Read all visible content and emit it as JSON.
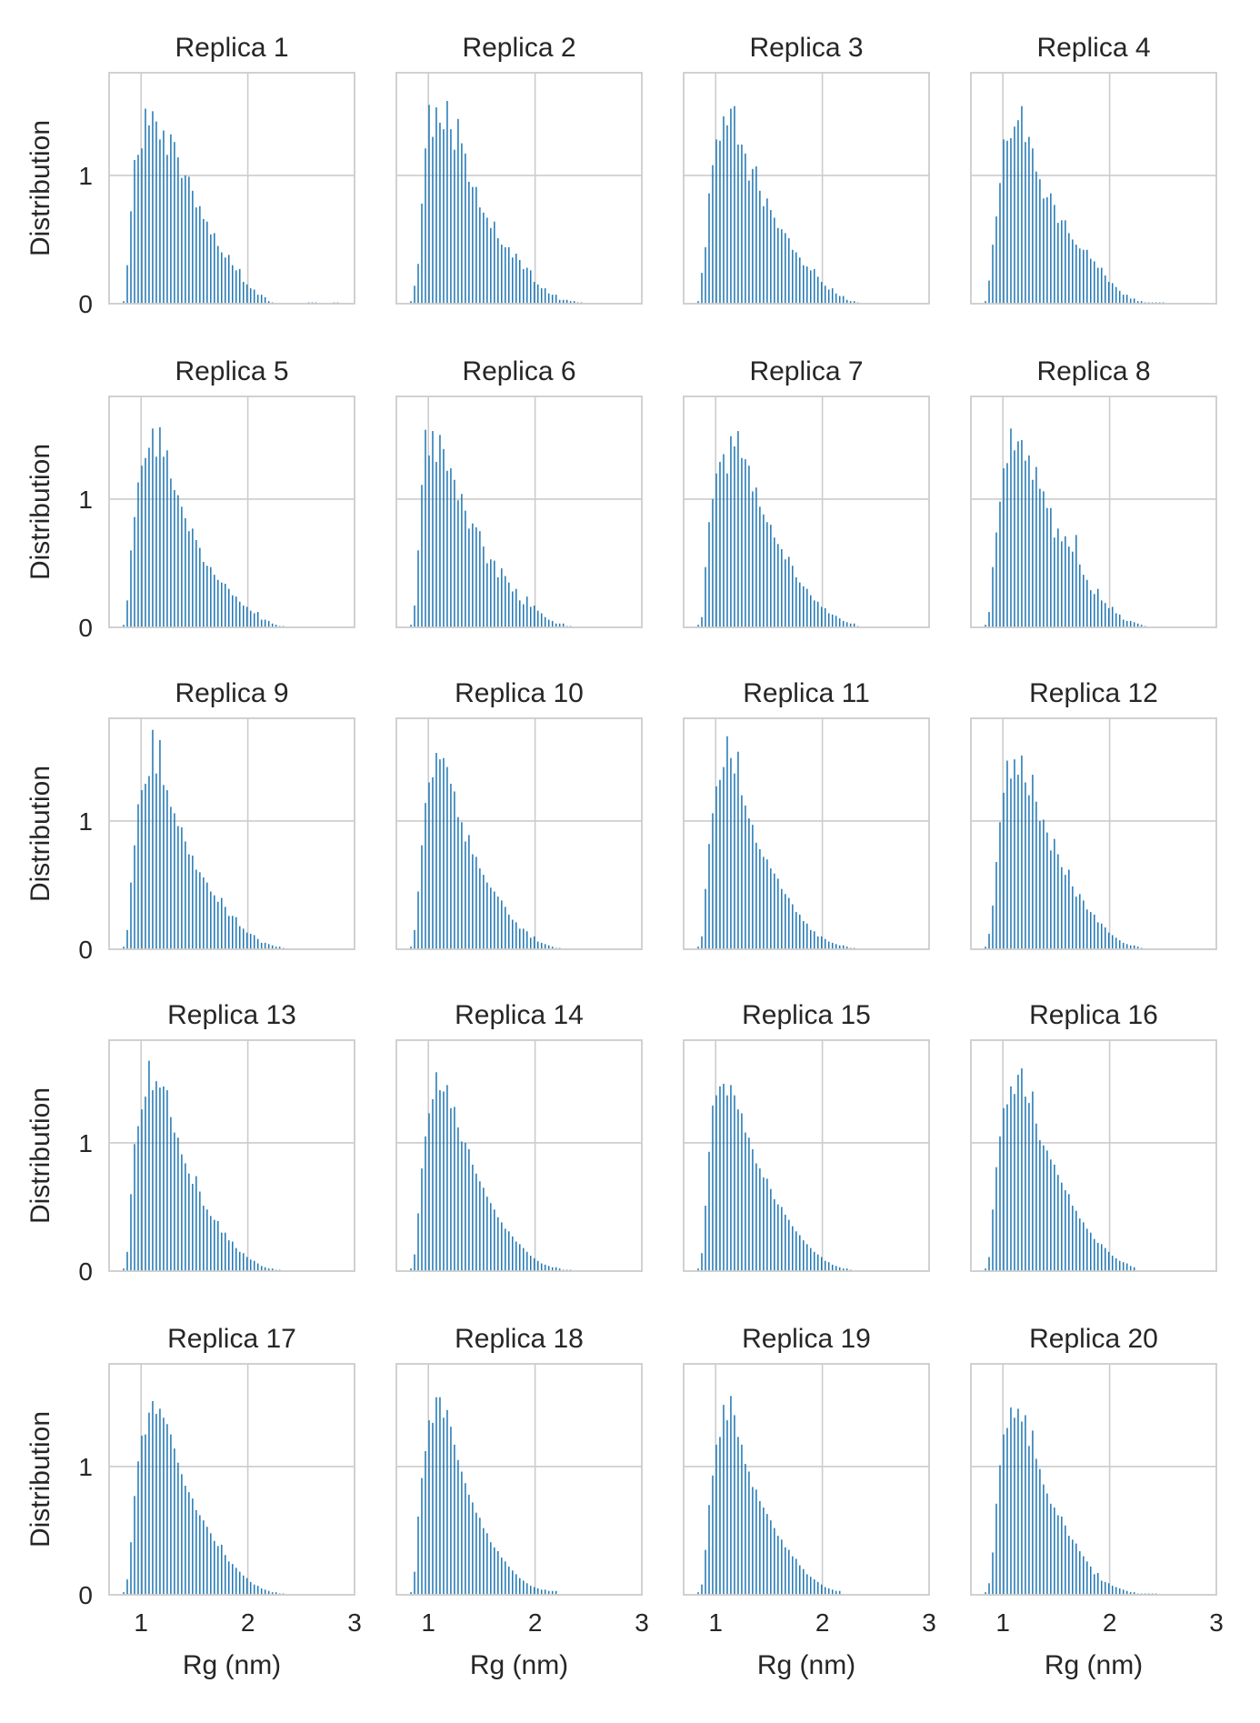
{
  "figure": {
    "xlabel": "Rg (nm)",
    "ylabel": "Distribution",
    "xticks": [
      "1",
      "2",
      "3"
    ],
    "yticks": [
      "0",
      "1"
    ],
    "bar_color": "#1f77b4",
    "grid_color": "#cccccc",
    "axis_color": "#cccccc"
  },
  "chart_data": {
    "type": "bar",
    "layout": "5 rows x 4 columns of histograms, shared x and y axes",
    "xlim": [
      0.7,
      3.0
    ],
    "ylim": [
      0,
      1.8
    ],
    "grid": true,
    "bin_width_nm": 0.034,
    "bin_start_nm": 0.83,
    "panels": [
      {
        "title": "Replica 1",
        "values": [
          0.02,
          0.3,
          0.72,
          1.12,
          1.16,
          1.21,
          1.52,
          1.39,
          1.5,
          1.42,
          1.28,
          1.35,
          1.16,
          1.32,
          1.26,
          1.14,
          0.98,
          1.0,
          0.99,
          0.88,
          0.75,
          0.76,
          0.66,
          0.64,
          0.54,
          0.55,
          0.45,
          0.4,
          0.36,
          0.38,
          0.3,
          0.26,
          0.27,
          0.17,
          0.15,
          0.12,
          0.11,
          0.07,
          0.07,
          0.05,
          0.02,
          0.01,
          0.0,
          0.0,
          0.0,
          0.0,
          0.0,
          0.0,
          0.0,
          0.0,
          0.0,
          0.01,
          0.01,
          0.01,
          0.0,
          0.0,
          0.0,
          0.0,
          0.01,
          0.01
        ]
      },
      {
        "title": "Replica 2",
        "values": [
          0.02,
          0.14,
          0.31,
          0.78,
          1.21,
          1.55,
          1.3,
          1.53,
          1.41,
          1.36,
          1.58,
          1.36,
          1.2,
          1.44,
          1.25,
          1.17,
          0.95,
          0.91,
          0.91,
          0.75,
          0.71,
          0.67,
          0.59,
          0.64,
          0.51,
          0.46,
          0.44,
          0.44,
          0.36,
          0.39,
          0.34,
          0.27,
          0.28,
          0.26,
          0.17,
          0.15,
          0.12,
          0.12,
          0.08,
          0.07,
          0.07,
          0.03,
          0.03,
          0.03,
          0.02,
          0.02,
          0.01,
          0.01
        ]
      },
      {
        "title": "Replica 3",
        "values": [
          0.02,
          0.24,
          0.44,
          0.86,
          1.08,
          1.28,
          1.27,
          1.46,
          1.39,
          1.52,
          1.54,
          1.24,
          1.24,
          1.17,
          0.96,
          1.05,
          1.07,
          0.88,
          0.76,
          0.82,
          0.73,
          0.67,
          0.59,
          0.58,
          0.55,
          0.51,
          0.42,
          0.4,
          0.36,
          0.3,
          0.29,
          0.26,
          0.27,
          0.21,
          0.17,
          0.14,
          0.11,
          0.12,
          0.08,
          0.06,
          0.06,
          0.03,
          0.02,
          0.02,
          0.01
        ]
      },
      {
        "title": "Replica 4",
        "values": [
          0.02,
          0.18,
          0.46,
          0.68,
          0.94,
          1.28,
          1.27,
          1.29,
          1.38,
          1.43,
          1.54,
          1.26,
          1.3,
          1.21,
          1.03,
          0.97,
          0.82,
          0.83,
          0.86,
          0.77,
          0.63,
          0.65,
          0.65,
          0.55,
          0.5,
          0.46,
          0.43,
          0.42,
          0.42,
          0.35,
          0.33,
          0.28,
          0.28,
          0.22,
          0.17,
          0.16,
          0.13,
          0.1,
          0.07,
          0.07,
          0.04,
          0.04,
          0.02,
          0.02,
          0.01,
          0.01,
          0.01,
          0.01,
          0.01,
          0.01
        ]
      },
      {
        "title": "Replica 5",
        "values": [
          0.02,
          0.21,
          0.6,
          0.86,
          1.13,
          1.26,
          1.32,
          1.4,
          1.55,
          1.33,
          1.56,
          1.33,
          1.38,
          1.16,
          1.07,
          1.03,
          0.94,
          0.85,
          0.75,
          0.77,
          0.68,
          0.62,
          0.51,
          0.48,
          0.47,
          0.41,
          0.37,
          0.35,
          0.34,
          0.3,
          0.25,
          0.24,
          0.2,
          0.17,
          0.16,
          0.13,
          0.11,
          0.12,
          0.06,
          0.06,
          0.05,
          0.03,
          0.02,
          0.01,
          0.01
        ]
      },
      {
        "title": "Replica 6",
        "values": [
          0.02,
          0.17,
          0.6,
          1.11,
          1.54,
          1.34,
          1.53,
          1.29,
          1.5,
          1.39,
          1.22,
          1.24,
          1.15,
          0.99,
          1.04,
          0.91,
          0.77,
          0.81,
          0.78,
          0.75,
          0.63,
          0.5,
          0.53,
          0.52,
          0.39,
          0.46,
          0.4,
          0.35,
          0.28,
          0.3,
          0.21,
          0.18,
          0.24,
          0.16,
          0.17,
          0.13,
          0.11,
          0.08,
          0.06,
          0.05,
          0.03,
          0.03,
          0.03,
          0.01,
          0.01
        ]
      },
      {
        "title": "Replica 7",
        "values": [
          0.02,
          0.08,
          0.47,
          0.82,
          1.0,
          1.2,
          1.29,
          1.35,
          1.2,
          1.49,
          1.41,
          1.53,
          1.32,
          1.31,
          1.26,
          1.06,
          1.09,
          0.94,
          0.88,
          0.82,
          0.8,
          0.7,
          0.65,
          0.61,
          0.53,
          0.55,
          0.48,
          0.39,
          0.35,
          0.32,
          0.3,
          0.25,
          0.21,
          0.2,
          0.16,
          0.15,
          0.11,
          0.1,
          0.09,
          0.07,
          0.05,
          0.04,
          0.03,
          0.03,
          0.01
        ]
      },
      {
        "title": "Replica 8",
        "values": [
          0.02,
          0.12,
          0.47,
          0.74,
          0.98,
          1.24,
          1.28,
          1.55,
          1.38,
          1.45,
          1.46,
          1.3,
          1.34,
          1.15,
          1.25,
          1.08,
          1.06,
          0.93,
          0.93,
          0.7,
          0.77,
          0.67,
          0.71,
          0.63,
          0.59,
          0.72,
          0.49,
          0.41,
          0.37,
          0.29,
          0.26,
          0.3,
          0.21,
          0.19,
          0.15,
          0.16,
          0.11,
          0.1,
          0.06,
          0.05,
          0.05,
          0.04,
          0.03,
          0.02,
          0.01
        ]
      },
      {
        "title": "Replica 9",
        "values": [
          0.02,
          0.15,
          0.52,
          0.81,
          1.13,
          1.24,
          1.29,
          1.35,
          1.71,
          1.37,
          1.63,
          1.28,
          1.24,
          1.11,
          1.06,
          0.96,
          0.95,
          0.84,
          0.74,
          0.73,
          0.62,
          0.6,
          0.56,
          0.52,
          0.45,
          0.42,
          0.37,
          0.4,
          0.33,
          0.26,
          0.26,
          0.25,
          0.18,
          0.16,
          0.13,
          0.12,
          0.11,
          0.08,
          0.05,
          0.05,
          0.04,
          0.03,
          0.02,
          0.02,
          0.01
        ]
      },
      {
        "title": "Replica 10",
        "values": [
          0.02,
          0.15,
          0.45,
          0.81,
          1.14,
          1.3,
          1.34,
          1.53,
          1.48,
          1.49,
          1.42,
          1.29,
          1.23,
          1.03,
          0.99,
          0.84,
          0.89,
          0.74,
          0.72,
          0.63,
          0.58,
          0.52,
          0.48,
          0.45,
          0.41,
          0.38,
          0.33,
          0.27,
          0.23,
          0.21,
          0.16,
          0.16,
          0.14,
          0.09,
          0.1,
          0.06,
          0.05,
          0.04,
          0.03,
          0.02,
          0.01,
          0.01
        ]
      },
      {
        "title": "Replica 11",
        "values": [
          0.02,
          0.1,
          0.47,
          0.82,
          1.06,
          1.27,
          1.32,
          1.42,
          1.66,
          1.49,
          1.37,
          1.54,
          1.2,
          1.12,
          1.02,
          0.97,
          0.83,
          0.78,
          0.72,
          0.7,
          0.63,
          0.59,
          0.55,
          0.47,
          0.43,
          0.4,
          0.35,
          0.29,
          0.27,
          0.22,
          0.2,
          0.15,
          0.14,
          0.1,
          0.1,
          0.08,
          0.06,
          0.05,
          0.04,
          0.03,
          0.03,
          0.02,
          0.01,
          0.01
        ]
      },
      {
        "title": "Replica 12",
        "values": [
          0.02,
          0.12,
          0.34,
          0.68,
          0.99,
          1.22,
          1.47,
          1.33,
          1.48,
          1.36,
          1.51,
          1.3,
          1.2,
          1.36,
          1.15,
          1.0,
          1.01,
          0.91,
          0.77,
          0.86,
          0.74,
          0.64,
          0.58,
          0.62,
          0.49,
          0.41,
          0.43,
          0.38,
          0.31,
          0.29,
          0.27,
          0.21,
          0.2,
          0.17,
          0.13,
          0.11,
          0.09,
          0.07,
          0.05,
          0.04,
          0.03,
          0.03,
          0.02,
          0.01
        ]
      },
      {
        "title": "Replica 13",
        "values": [
          0.02,
          0.15,
          0.6,
          0.99,
          1.13,
          1.26,
          1.36,
          1.64,
          1.41,
          1.48,
          1.43,
          1.44,
          1.41,
          1.2,
          1.08,
          1.04,
          0.91,
          0.84,
          0.76,
          0.68,
          0.74,
          0.62,
          0.51,
          0.48,
          0.43,
          0.4,
          0.39,
          0.3,
          0.3,
          0.24,
          0.23,
          0.18,
          0.15,
          0.14,
          0.11,
          0.09,
          0.08,
          0.06,
          0.04,
          0.03,
          0.02,
          0.02,
          0.01,
          0.01
        ]
      },
      {
        "title": "Replica 14",
        "values": [
          0.02,
          0.13,
          0.45,
          0.8,
          1.05,
          1.23,
          1.34,
          1.55,
          1.41,
          1.4,
          1.45,
          1.27,
          1.28,
          1.12,
          1.01,
          1.0,
          0.95,
          0.83,
          0.76,
          0.7,
          0.65,
          0.58,
          0.53,
          0.48,
          0.42,
          0.38,
          0.33,
          0.31,
          0.27,
          0.23,
          0.21,
          0.18,
          0.15,
          0.12,
          0.1,
          0.08,
          0.06,
          0.05,
          0.04,
          0.03,
          0.03,
          0.02,
          0.01,
          0.01,
          0.01
        ]
      },
      {
        "title": "Replica 15",
        "values": [
          0.02,
          0.14,
          0.51,
          0.93,
          1.29,
          1.37,
          1.44,
          1.46,
          1.37,
          1.45,
          1.37,
          1.26,
          1.23,
          1.08,
          1.04,
          0.95,
          0.84,
          0.8,
          0.73,
          0.72,
          0.64,
          0.56,
          0.52,
          0.5,
          0.44,
          0.4,
          0.35,
          0.31,
          0.28,
          0.24,
          0.21,
          0.18,
          0.15,
          0.13,
          0.11,
          0.08,
          0.07,
          0.05,
          0.04,
          0.03,
          0.02,
          0.02,
          0.01
        ]
      },
      {
        "title": "Replica 16",
        "values": [
          0.02,
          0.11,
          0.48,
          0.81,
          1.05,
          1.27,
          1.3,
          1.44,
          1.38,
          1.53,
          1.58,
          1.36,
          1.31,
          1.4,
          1.15,
          1.02,
          0.98,
          0.94,
          0.87,
          0.83,
          0.75,
          0.69,
          0.63,
          0.6,
          0.51,
          0.47,
          0.41,
          0.38,
          0.33,
          0.3,
          0.25,
          0.22,
          0.21,
          0.18,
          0.15,
          0.12,
          0.1,
          0.08,
          0.07,
          0.06,
          0.04,
          0.03
        ]
      },
      {
        "title": "Replica 17",
        "values": [
          0.02,
          0.12,
          0.41,
          0.77,
          1.04,
          1.24,
          1.25,
          1.42,
          1.51,
          1.41,
          1.45,
          1.38,
          1.33,
          1.25,
          1.14,
          1.03,
          0.94,
          0.85,
          0.8,
          0.75,
          0.66,
          0.62,
          0.58,
          0.53,
          0.48,
          0.42,
          0.38,
          0.39,
          0.31,
          0.26,
          0.24,
          0.21,
          0.18,
          0.15,
          0.13,
          0.1,
          0.08,
          0.07,
          0.05,
          0.04,
          0.03,
          0.02,
          0.02,
          0.01,
          0.01
        ]
      },
      {
        "title": "Replica 18",
        "values": [
          0.02,
          0.18,
          0.61,
          0.91,
          1.12,
          1.36,
          1.34,
          1.54,
          1.54,
          1.38,
          1.44,
          1.31,
          1.17,
          1.05,
          0.96,
          0.87,
          0.78,
          0.72,
          0.64,
          0.6,
          0.52,
          0.48,
          0.41,
          0.37,
          0.34,
          0.29,
          0.26,
          0.22,
          0.19,
          0.16,
          0.13,
          0.11,
          0.09,
          0.07,
          0.06,
          0.05,
          0.04,
          0.04,
          0.03,
          0.03,
          0.03
        ]
      },
      {
        "title": "Replica 19",
        "values": [
          0.02,
          0.08,
          0.35,
          0.7,
          0.93,
          1.17,
          1.23,
          1.48,
          1.36,
          1.55,
          1.4,
          1.23,
          1.17,
          1.02,
          0.96,
          0.84,
          0.82,
          0.73,
          0.68,
          0.63,
          0.58,
          0.52,
          0.46,
          0.43,
          0.37,
          0.35,
          0.3,
          0.28,
          0.23,
          0.2,
          0.16,
          0.14,
          0.12,
          0.1,
          0.08,
          0.06,
          0.05,
          0.04,
          0.03,
          0.03
        ]
      },
      {
        "title": "Replica 20",
        "values": [
          0.02,
          0.09,
          0.33,
          0.71,
          1.01,
          1.25,
          1.3,
          1.46,
          1.38,
          1.45,
          1.35,
          1.4,
          1.16,
          1.28,
          1.06,
          0.98,
          0.86,
          0.79,
          0.71,
          0.68,
          0.62,
          0.61,
          0.54,
          0.46,
          0.43,
          0.4,
          0.34,
          0.3,
          0.26,
          0.22,
          0.16,
          0.17,
          0.11,
          0.1,
          0.09,
          0.07,
          0.06,
          0.05,
          0.04,
          0.03,
          0.02,
          0.02,
          0.01,
          0.01,
          0.01,
          0.01,
          0.01,
          0.01
        ]
      }
    ]
  }
}
